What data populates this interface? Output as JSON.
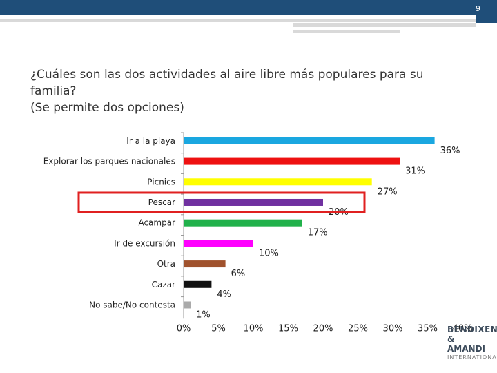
{
  "header": {
    "page_number": "9"
  },
  "title_lines": [
    "¿Cuáles son las dos actividades al aire libre más populares para su",
    "familia?",
    "(Se permite dos opciones)"
  ],
  "chart_data": {
    "type": "bar",
    "orientation": "horizontal",
    "categories": [
      "Ir a la playa",
      "Explorar los parques nacionales",
      "Picnics",
      "Pescar",
      "Acampar",
      "Ir de excursión",
      "Otra",
      "Cazar",
      "No sabe/No contesta"
    ],
    "values": [
      36,
      31,
      27,
      20,
      17,
      10,
      6,
      4,
      1
    ],
    "value_labels": [
      "36%",
      "31%",
      "27%",
      "20%",
      "17%",
      "10%",
      "6%",
      "4%",
      "1%"
    ],
    "colors": [
      "#1aa7e0",
      "#ee1111",
      "#ffff00",
      "#7030a0",
      "#21b14b",
      "#ff00ff",
      "#a0522d",
      "#111111",
      "#aaaaaa"
    ],
    "highlight_category": "Pescar",
    "highlight_color": "#e02020",
    "xlim": [
      0,
      40
    ],
    "x_ticks": [
      0,
      5,
      10,
      15,
      20,
      25,
      30,
      35,
      40
    ],
    "x_tick_labels": [
      "0%",
      "5%",
      "10%",
      "15%",
      "20%",
      "25%",
      "30%",
      "35%",
      "40%"
    ],
    "grid": false,
    "legend": "none"
  },
  "logo": {
    "line1": "BENDIXEN",
    "line2": "& AMANDI",
    "line3": "INTERNATIONAL"
  }
}
